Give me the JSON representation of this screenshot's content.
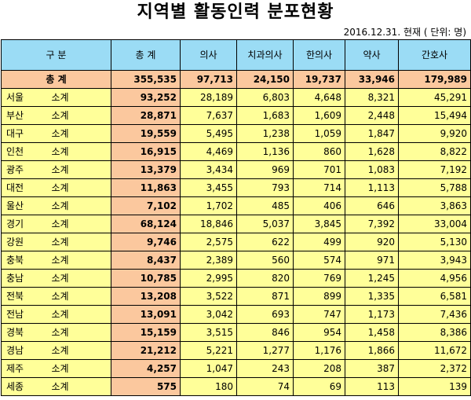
{
  "title": "지역별 활동인력 분포현황",
  "note": "2016.12.31. 현재  ( 단위: 명)",
  "headers": [
    "구 분",
    "총 계",
    "의사",
    "치과의사",
    "한의사",
    "약사",
    "간호사"
  ],
  "total": {
    "label": "총 계",
    "values": [
      "355,535",
      "97,713",
      "24,150",
      "19,737",
      "33,946",
      "179,989"
    ]
  },
  "rows": [
    {
      "region": "서울",
      "sub": "소계",
      "values": [
        "93,252",
        "28,189",
        "6,803",
        "4,648",
        "8,321",
        "45,291"
      ]
    },
    {
      "region": "부산",
      "sub": "소계",
      "values": [
        "28,871",
        "7,637",
        "1,683",
        "1,609",
        "2,448",
        "15,494"
      ]
    },
    {
      "region": "대구",
      "sub": "소계",
      "values": [
        "19,559",
        "5,495",
        "1,238",
        "1,059",
        "1,847",
        "9,920"
      ]
    },
    {
      "region": "인천",
      "sub": "소계",
      "values": [
        "16,915",
        "4,469",
        "1,136",
        "860",
        "1,628",
        "8,822"
      ]
    },
    {
      "region": "광주",
      "sub": "소계",
      "values": [
        "13,379",
        "3,434",
        "969",
        "701",
        "1,083",
        "7,192"
      ]
    },
    {
      "region": "대전",
      "sub": "소계",
      "values": [
        "11,863",
        "3,455",
        "793",
        "714",
        "1,113",
        "5,788"
      ]
    },
    {
      "region": "울산",
      "sub": "소계",
      "values": [
        "7,102",
        "1,702",
        "485",
        "406",
        "646",
        "3,863"
      ]
    },
    {
      "region": "경기",
      "sub": "소계",
      "values": [
        "68,124",
        "18,846",
        "5,037",
        "3,845",
        "7,392",
        "33,004"
      ]
    },
    {
      "region": "강원",
      "sub": "소계",
      "values": [
        "9,746",
        "2,575",
        "622",
        "499",
        "920",
        "5,130"
      ]
    },
    {
      "region": "충북",
      "sub": "소계",
      "values": [
        "8,437",
        "2,389",
        "560",
        "574",
        "971",
        "3,943"
      ]
    },
    {
      "region": "충남",
      "sub": "소계",
      "values": [
        "10,785",
        "2,995",
        "820",
        "769",
        "1,245",
        "4,956"
      ]
    },
    {
      "region": "전북",
      "sub": "소계",
      "values": [
        "13,208",
        "3,522",
        "871",
        "899",
        "1,335",
        "6,581"
      ]
    },
    {
      "region": "전남",
      "sub": "소계",
      "values": [
        "13,091",
        "3,042",
        "693",
        "747",
        "1,173",
        "7,436"
      ]
    },
    {
      "region": "경북",
      "sub": "소계",
      "values": [
        "15,159",
        "3,515",
        "846",
        "954",
        "1,458",
        "8,386"
      ]
    },
    {
      "region": "경남",
      "sub": "소계",
      "values": [
        "21,212",
        "5,221",
        "1,277",
        "1,176",
        "1,866",
        "11,672"
      ]
    },
    {
      "region": "제주",
      "sub": "소계",
      "values": [
        "4,257",
        "1,047",
        "243",
        "208",
        "387",
        "2,372"
      ]
    },
    {
      "region": "세종",
      "sub": "소계",
      "values": [
        "575",
        "180",
        "74",
        "69",
        "113",
        "139"
      ]
    }
  ]
}
